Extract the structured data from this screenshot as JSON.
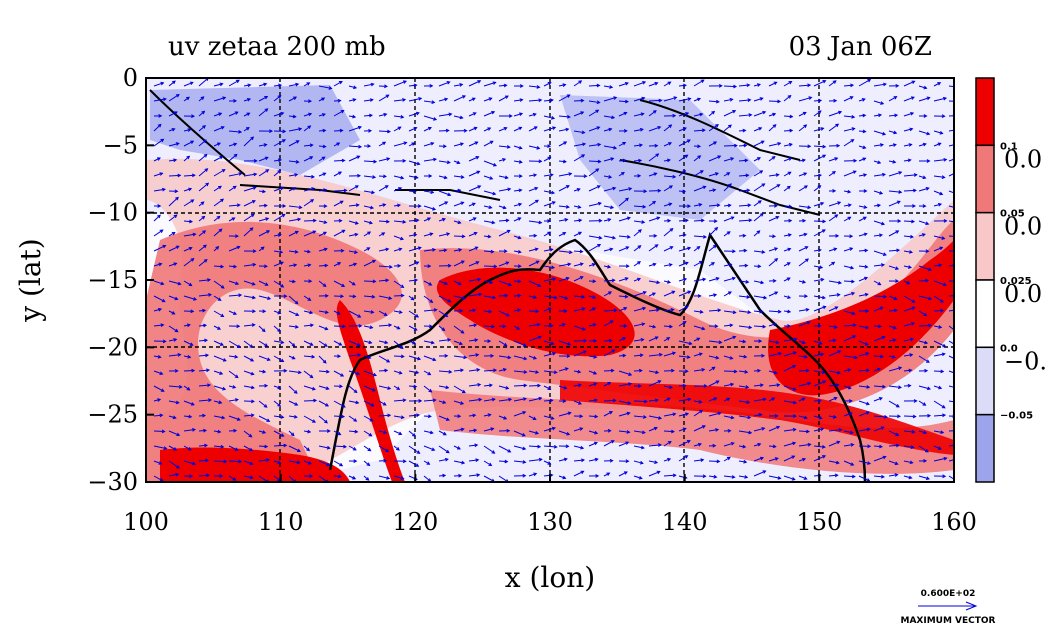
{
  "chart_data": {
    "type": "heatmap",
    "title": "uv zetaa 200 mb",
    "subtitle": "03 Jan 06Z",
    "xlabel": "x (lon)",
    "ylabel": "y (lat)",
    "xlim": [
      100,
      160
    ],
    "ylim": [
      -30,
      0
    ],
    "xticks": [
      "100",
      "110",
      "120",
      "130",
      "140",
      "150",
      "160"
    ],
    "yticks": [
      "0",
      "−5",
      "−10",
      "−15",
      "−20",
      "−25",
      "−30"
    ],
    "grid": true,
    "colorbar": {
      "levels": [
        {
          "label": "0.1",
          "big": "0.0",
          "color": "#ee0000"
        },
        {
          "label": "0.05",
          "big": "0.0",
          "color": "#f07878"
        },
        {
          "label": "0.025",
          "big": "0.0",
          "color": "#f8c8c8"
        },
        {
          "label": "0.0",
          "big": "−0.",
          "color": "#ffffff"
        },
        {
          "label": "−0.05",
          "big": "",
          "color": "#dcdcf8"
        },
        {
          "label": "",
          "big": "",
          "color": "#9ea4ec"
        }
      ]
    },
    "vector_key": {
      "value": "0.600E+02",
      "label": "MAXIMUM VECTOR"
    },
    "colors": {
      "vector": "#0000dd",
      "strong_pos": "#ee0000",
      "mid_pos": "#f07878",
      "weak_pos": "#f8c8c8",
      "weak_neg": "#dcdcf8",
      "strong_neg": "#9ea4ec"
    },
    "features": [
      {
        "name": "positive vorticity max",
        "lon": 129,
        "lat": -16,
        "level": "0.1"
      },
      {
        "name": "positive vorticity band",
        "lon": 153,
        "lat": -20,
        "level": "0.1"
      },
      {
        "name": "positive vorticity band",
        "lon": 112,
        "lat": -27,
        "level": "0.1"
      },
      {
        "name": "negative vorticity",
        "lon": 115,
        "lat": -3,
        "level": "-0.05"
      }
    ]
  }
}
